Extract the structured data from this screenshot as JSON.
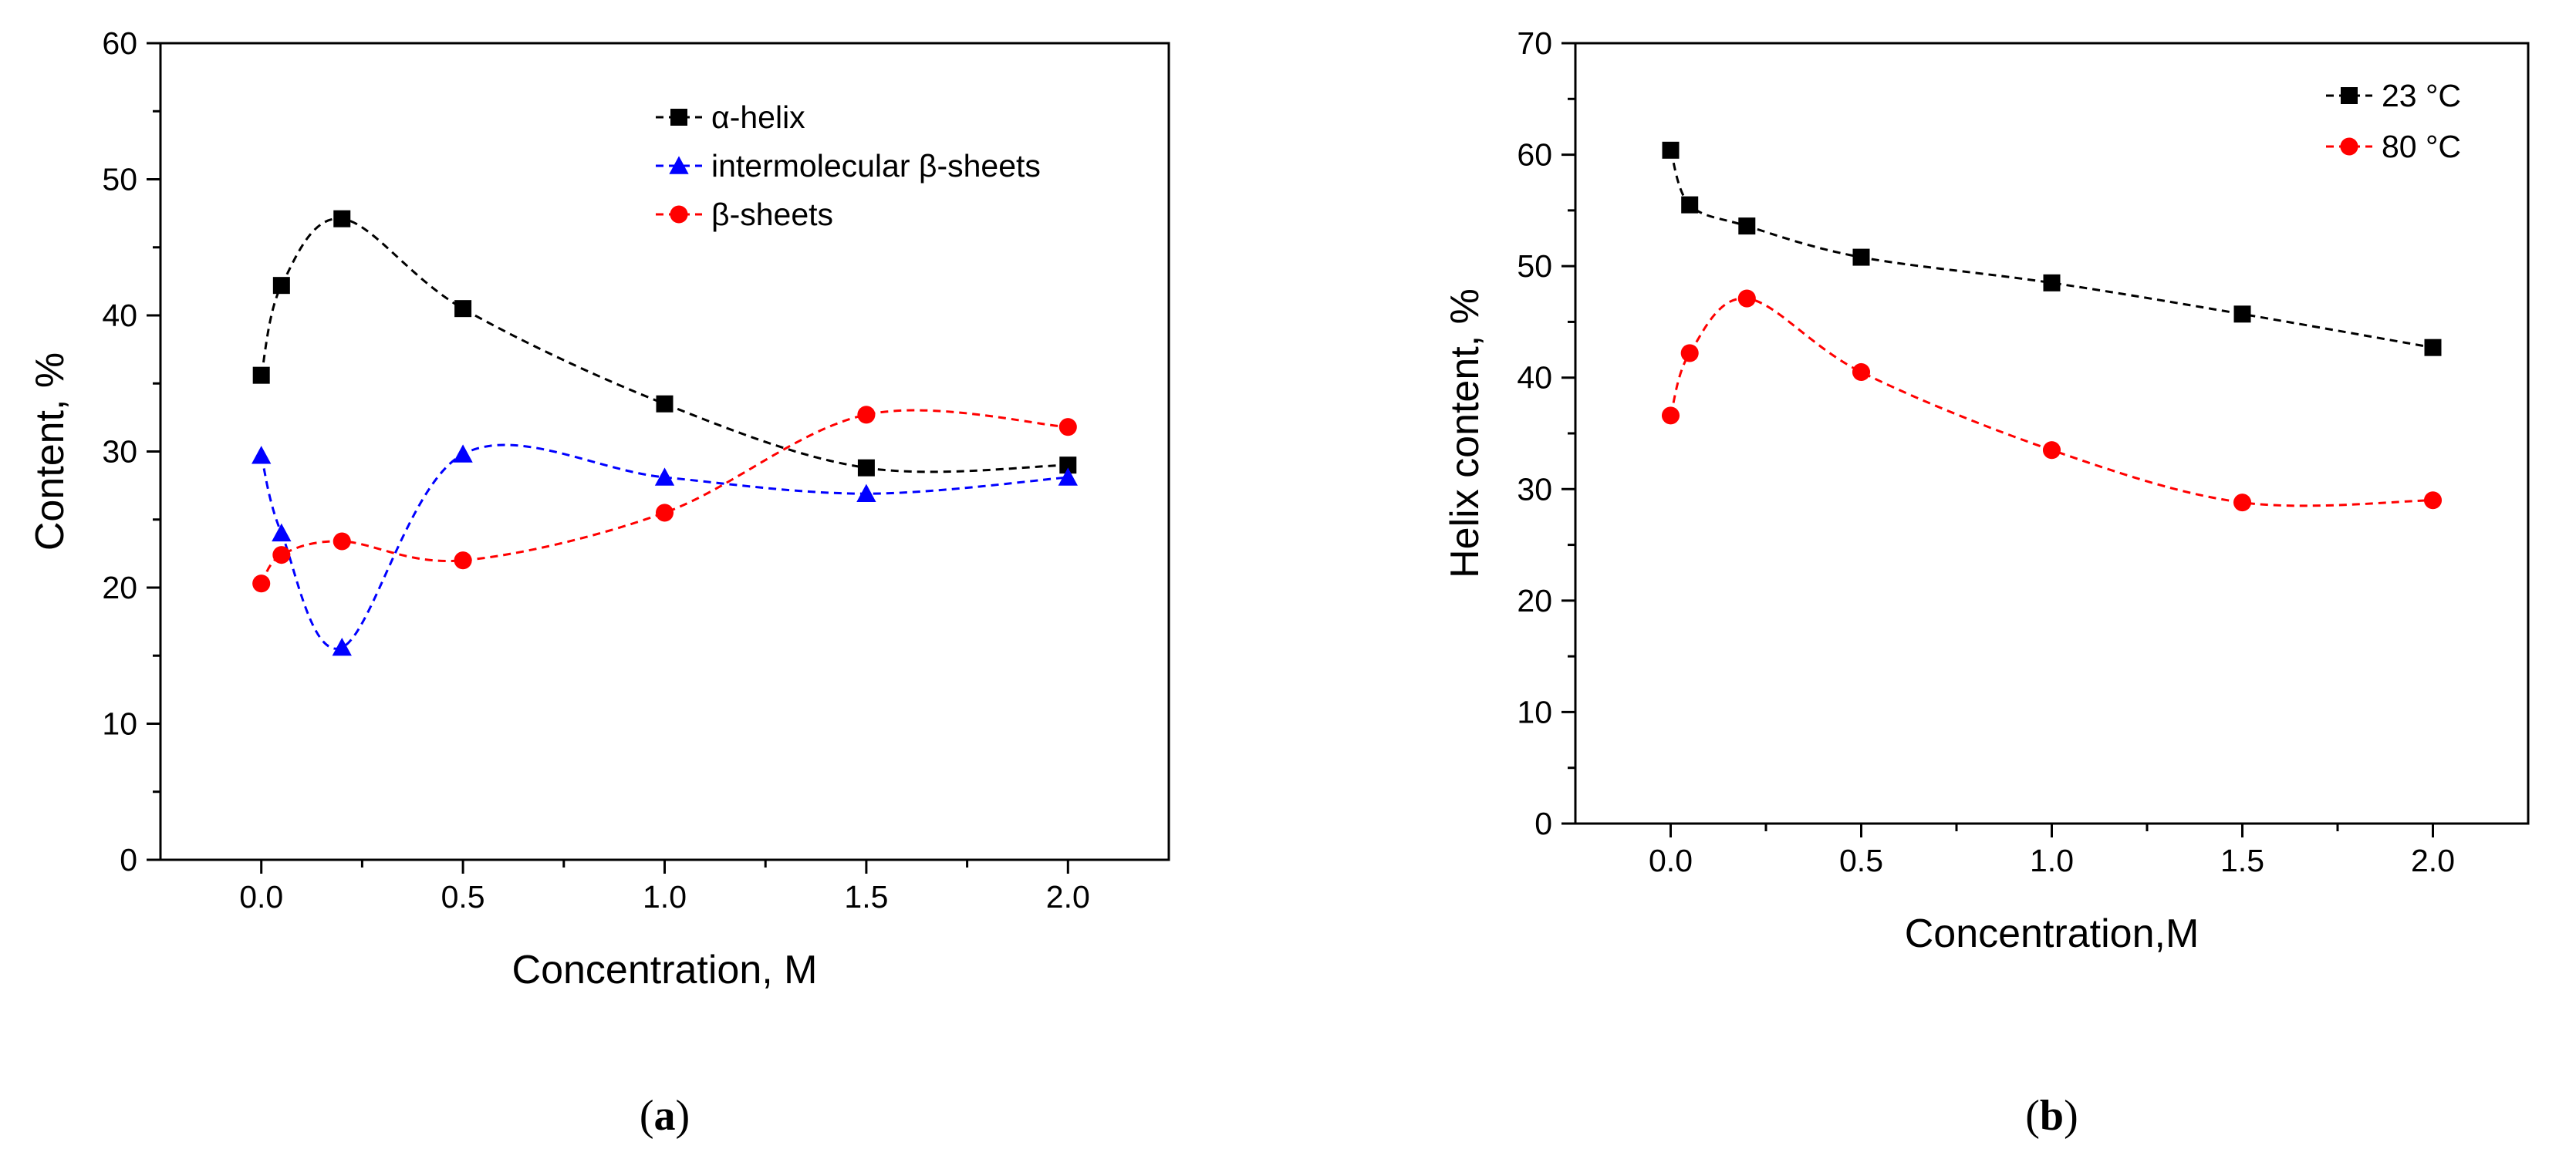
{
  "chart_data": [
    {
      "type": "line",
      "panel_label": "(a)",
      "panel_letter": "a",
      "xlabel": "Concentration, M",
      "ylabel": "Content, %",
      "xlim": [
        -0.25,
        2.25
      ],
      "ylim": [
        0,
        60
      ],
      "xticks": [
        "0.0",
        "0.5",
        "1.0",
        "1.5",
        "2.0"
      ],
      "xtick_values": [
        0,
        0.5,
        1.0,
        1.5,
        2.0
      ],
      "yticks": [
        "0",
        "10",
        "20",
        "30",
        "40",
        "50",
        "60"
      ],
      "ytick_values": [
        0,
        10,
        20,
        30,
        40,
        50,
        60
      ],
      "grid": false,
      "legend_position": "top-right",
      "x": [
        0,
        0.05,
        0.2,
        0.5,
        1.0,
        1.5,
        2.0
      ],
      "series": [
        {
          "name": "α-helix",
          "color": "#000000",
          "marker": "square",
          "values": [
            35.6,
            42.2,
            47.1,
            40.5,
            33.5,
            28.8,
            29.0
          ]
        },
        {
          "name": "intermolecular β-sheets",
          "color": "#0000ff",
          "marker": "triangle",
          "values": [
            29.7,
            24.0,
            15.6,
            29.8,
            28.1,
            26.9,
            28.1
          ]
        },
        {
          "name": "β-sheets",
          "color": "#ff0000",
          "marker": "circle",
          "values": [
            20.3,
            22.4,
            23.4,
            22.0,
            25.5,
            32.7,
            31.8
          ]
        }
      ]
    },
    {
      "type": "line",
      "panel_label": "(b)",
      "panel_letter": "b",
      "xlabel": "Concentration,M",
      "ylabel": "Helix content, %",
      "xlim": [
        -0.25,
        2.25
      ],
      "ylim": [
        0,
        70
      ],
      "xticks": [
        "0.0",
        "0.5",
        "1.0",
        "1.5",
        "2.0"
      ],
      "xtick_values": [
        0,
        0.5,
        1.0,
        1.5,
        2.0
      ],
      "yticks": [
        "0",
        "10",
        "20",
        "30",
        "40",
        "50",
        "60",
        "70"
      ],
      "ytick_values": [
        0,
        10,
        20,
        30,
        40,
        50,
        60,
        70
      ],
      "grid": false,
      "legend_position": "top-right",
      "x": [
        0,
        0.05,
        0.2,
        0.5,
        1.0,
        1.5,
        2.0
      ],
      "series": [
        {
          "name": "23 °C",
          "color": "#000000",
          "marker": "square",
          "values": [
            60.4,
            55.5,
            53.6,
            50.8,
            48.5,
            45.7,
            42.7
          ]
        },
        {
          "name": "80 °C",
          "color": "#ff0000",
          "marker": "circle",
          "values": [
            36.6,
            42.2,
            47.1,
            40.5,
            33.5,
            28.8,
            29.0
          ]
        }
      ]
    }
  ]
}
